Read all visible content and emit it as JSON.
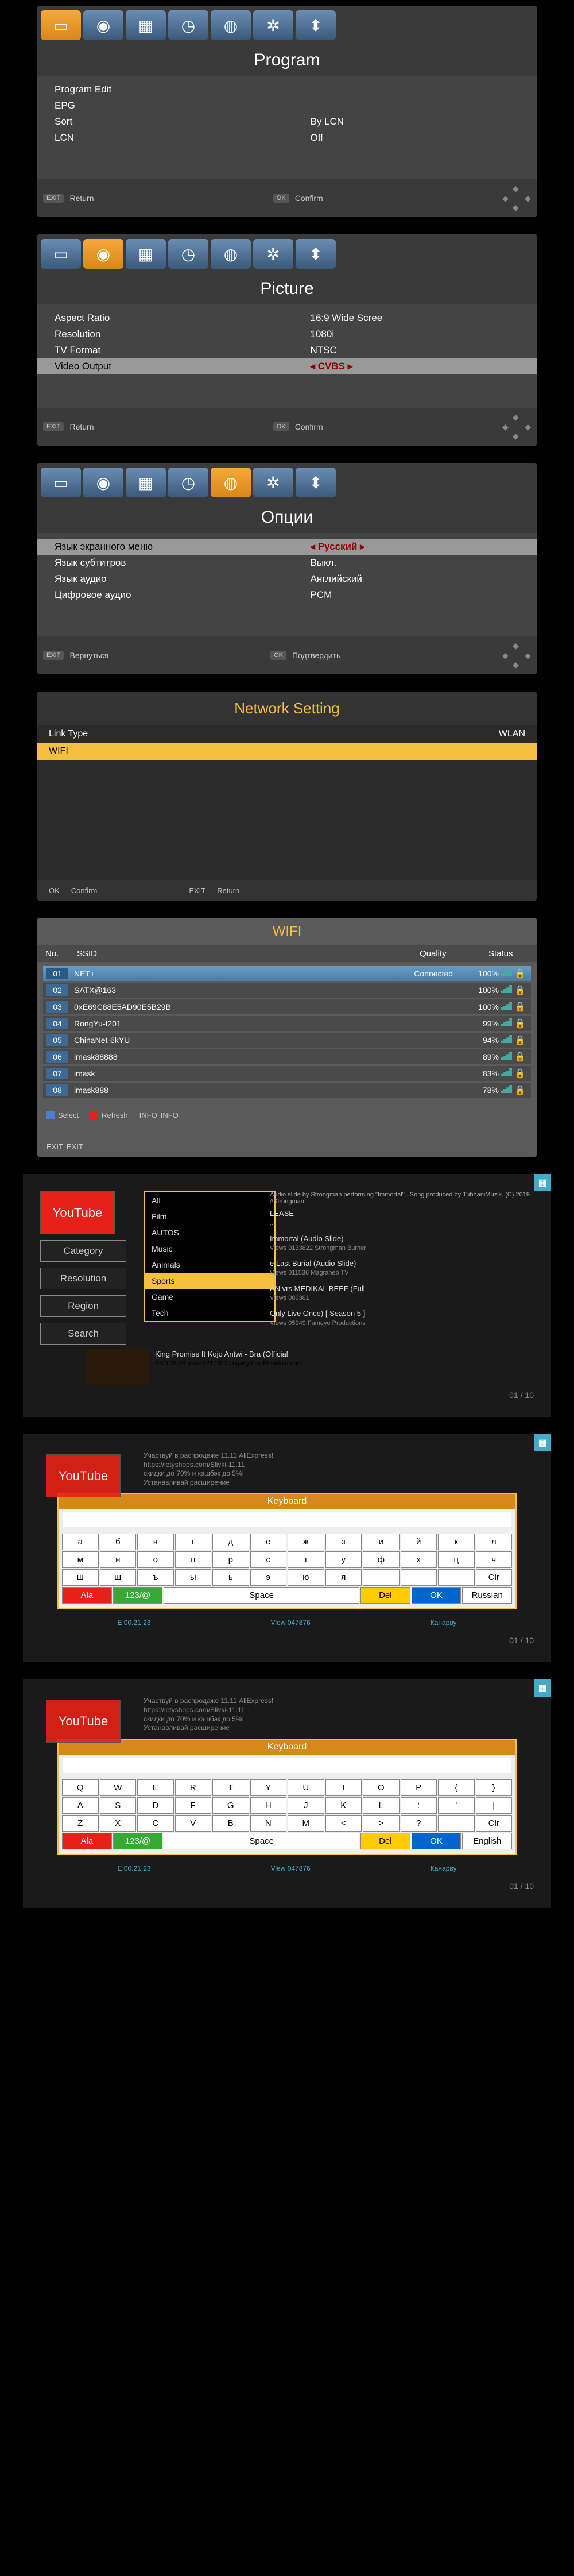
{
  "icons": [
    "▭",
    "◉",
    "▦",
    "◷",
    "◍",
    "✲",
    "⬍"
  ],
  "s1": {
    "title": "Program",
    "rows": [
      {
        "label": "Program Edit",
        "value": ""
      },
      {
        "label": "EPG",
        "value": ""
      },
      {
        "label": "Sort",
        "value": "By LCN"
      },
      {
        "label": "LCN",
        "value": "Off"
      }
    ],
    "return": "Return",
    "confirm": "Confirm"
  },
  "s2": {
    "title": "Picture",
    "rows": [
      {
        "label": "Aspect Ratio",
        "value": "16:9 Wide Scree"
      },
      {
        "label": "Resolution",
        "value": "1080i"
      },
      {
        "label": "TV Format",
        "value": "NTSC"
      }
    ],
    "hl": {
      "label": "Video Output",
      "value": "CVBS"
    },
    "return": "Return",
    "confirm": "Confirm"
  },
  "s3": {
    "title": "Опции",
    "hl": {
      "label": "Язык экранного меню",
      "value": "Русский"
    },
    "rows": [
      {
        "label": "Язык субтитров",
        "value": "Выкл."
      },
      {
        "label": "Язык аудио",
        "value": "Английский"
      },
      {
        "label": "Цифровое аудио",
        "value": "PCM"
      }
    ],
    "return": "Вернуться",
    "confirm": "Подтвердить"
  },
  "s4": {
    "title": "Network Setting",
    "link": {
      "label": "Link Type",
      "value": "WLAN"
    },
    "wifi": "WIFI",
    "confirm": "Confirm",
    "return": "Return"
  },
  "s5": {
    "title": "WIFI",
    "cols": {
      "no": "No.",
      "ssid": "SSID",
      "quality": "Quality",
      "status": "Status"
    },
    "rows": [
      {
        "no": "01",
        "ssid": "NET+",
        "extra": "Connected",
        "q": "100%"
      },
      {
        "no": "02",
        "ssid": "SATX@163",
        "q": "100%"
      },
      {
        "no": "03",
        "ssid": "0xE69C88E5AD90E5B29B",
        "q": "100%"
      },
      {
        "no": "04",
        "ssid": "RongYu-f201",
        "q": "99%"
      },
      {
        "no": "05",
        "ssid": "ChinaNet-6kYU",
        "q": "94%"
      },
      {
        "no": "06",
        "ssid": "imask88888",
        "q": "89%"
      },
      {
        "no": "07",
        "ssid": "imask",
        "q": "83%"
      },
      {
        "no": "08",
        "ssid": "imask888",
        "q": "78%"
      }
    ],
    "select": "Select",
    "refresh": "Refresh",
    "info": "INFO",
    "exit": "EXIT",
    "dot_colors": {
      "select": "#4a7dd5",
      "refresh": "#e62117",
      "info": "#555",
      "exit": "#555"
    }
  },
  "s6": {
    "logo": "YouTube",
    "buttons": [
      "Category",
      "Resolution",
      "Region",
      "Search"
    ],
    "cats": [
      "All",
      "Film",
      "AUTOS",
      "Music",
      "Animals",
      "Sports",
      "Game",
      "Tech"
    ],
    "cat_selected": 5,
    "top_text": "Audio slide by Strongman performing \"Immortal\" . Song produced by TubhaniMuzik. (C) 2019. #Strongman",
    "vids": [
      {
        "title": "LEASE",
        "sub": "..."
      },
      {
        "title": "Immortal (Audio Slide)",
        "sub": "Views 0133822     Strongman Burner"
      },
      {
        "title": "e Last Burial (Audio Slide)",
        "sub": "Views 011536     Magraheb TV"
      },
      {
        "title": "AN vrs MEDIKAL BEEF (Full",
        "sub": "Views 086381"
      },
      {
        "title": "Only Live Once) [ Season 5 ]",
        "sub": "Views 05949     Fameye Productions"
      }
    ],
    "bottom": {
      "title": "King Promise ft Kojo Antwi - Bra (Official",
      "sub": "E 00.03.06     View 0217707     Legacy Life Entertainment"
    },
    "page": "01 / 10"
  },
  "s7": {
    "logo": "YouTube",
    "text": [
      "Участвуй в распродаже 11.11 AliExpress!",
      "https://letyshops.com/Slivki-11.11",
      "скидки до 70% и кэшбэк до 5%!",
      "Устанавливай расширение"
    ],
    "kb_title": "Keyboard",
    "rows": [
      [
        "а",
        "б",
        "в",
        "г",
        "д",
        "е",
        "ж",
        "з",
        "и",
        "й",
        "к",
        "л"
      ],
      [
        "м",
        "н",
        "о",
        "п",
        "р",
        "с",
        "т",
        "у",
        "ф",
        "х",
        "ц",
        "ч"
      ],
      [
        "ш",
        "щ",
        "ъ",
        "ы",
        "ь",
        "э",
        "ю",
        "я",
        "",
        "",
        "",
        "Clr"
      ]
    ],
    "bottom": [
      "Ala",
      "123/@",
      "Space",
      "Del",
      "OK",
      "Russian"
    ],
    "page": "01 / 10",
    "foot": [
      "E 00.21.23",
      "View 047876",
      "Канарву"
    ]
  },
  "s8": {
    "logo": "YouTube",
    "text": [
      "Участвуй в распродаже 11.11 AliExpress!",
      "https://letyshops.com/Slivki-11.11",
      "скидки до 70% и кэшбэк до 5%!",
      "Устанавливай расширение"
    ],
    "kb_title": "Keyboard",
    "rows": [
      [
        "Q",
        "W",
        "E",
        "R",
        "T",
        "Y",
        "U",
        "I",
        "O",
        "P",
        "{",
        "}"
      ],
      [
        "A",
        "S",
        "D",
        "F",
        "G",
        "H",
        "J",
        "K",
        "L",
        ":",
        "'",
        "|"
      ],
      [
        "Z",
        "X",
        "C",
        "V",
        "B",
        "N",
        "M",
        "<",
        ">",
        "?",
        "",
        "Clr"
      ]
    ],
    "bottom": [
      "Ala",
      "123/@",
      "Space",
      "Del",
      "OK",
      "English"
    ],
    "page": "01 / 10",
    "foot": [
      "E 00.21.23",
      "View 047876",
      "Канарву"
    ]
  }
}
